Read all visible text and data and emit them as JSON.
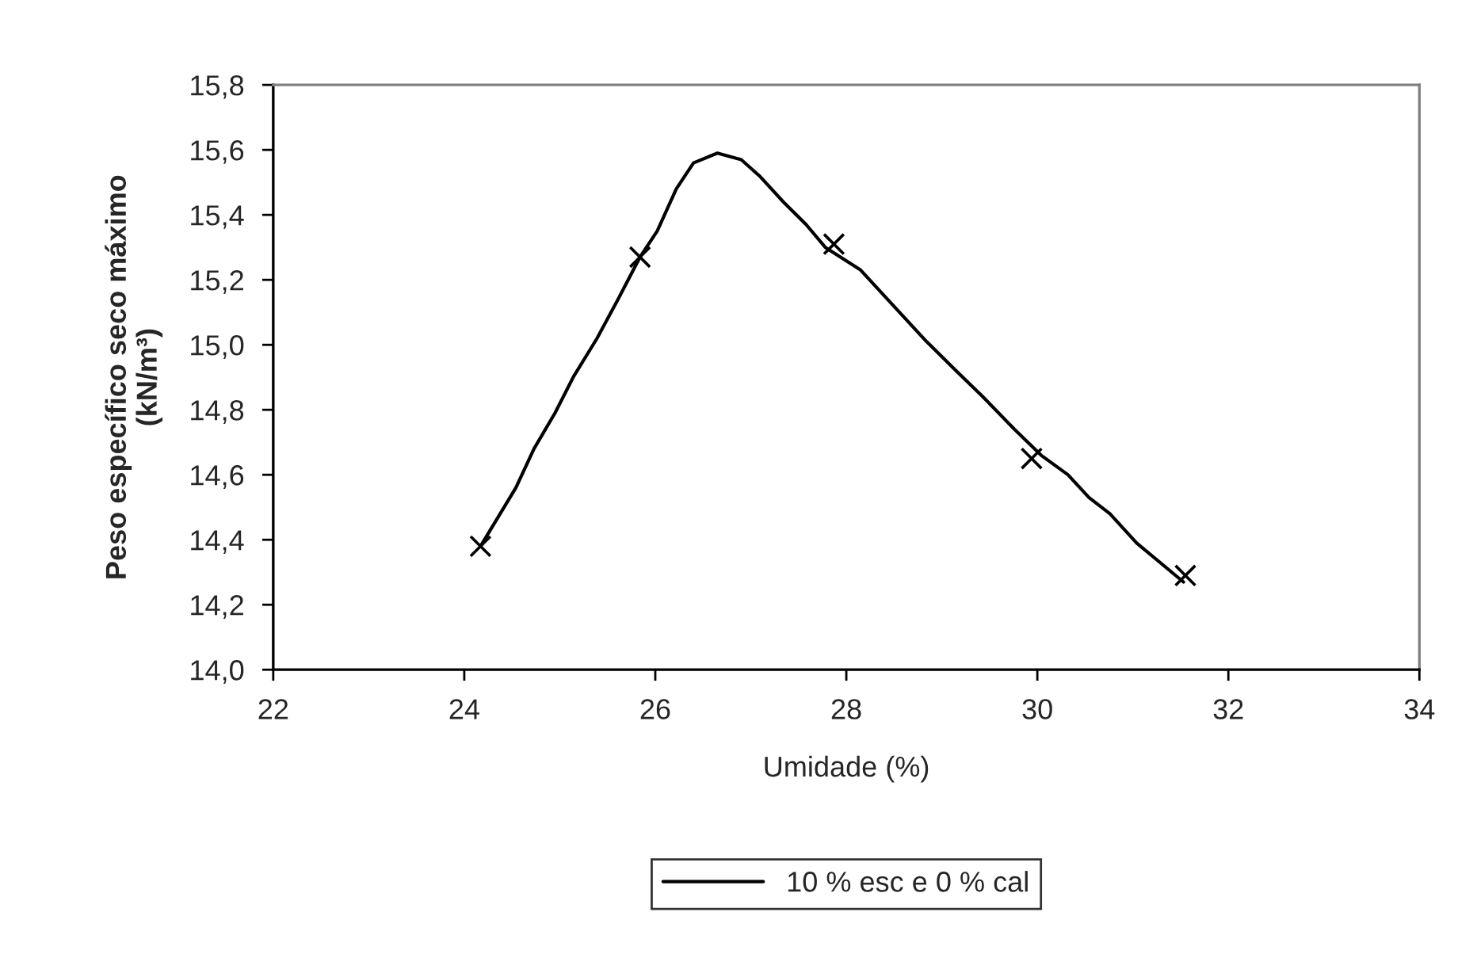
{
  "chart_data": {
    "type": "line",
    "xlabel": "Umidade (%)",
    "ylabel": "Peso específico seco máximo\n(kN/m³)",
    "xlim": [
      22,
      34
    ],
    "xticks": [
      22,
      24,
      26,
      28,
      30,
      32,
      34
    ],
    "ylim": [
      14.0,
      15.8
    ],
    "yticks": [
      {
        "value": 14.0,
        "label": "14,0"
      },
      {
        "value": 14.2,
        "label": "14,2"
      },
      {
        "value": 14.4,
        "label": "14,4"
      },
      {
        "value": 14.6,
        "label": "14,6"
      },
      {
        "value": 14.8,
        "label": "14,8"
      },
      {
        "value": 15.0,
        "label": "15,0"
      },
      {
        "value": 15.2,
        "label": "15,2"
      },
      {
        "value": 15.4,
        "label": "15,4"
      },
      {
        "value": 15.6,
        "label": "15,6"
      },
      {
        "value": 15.8,
        "label": "15,8"
      }
    ],
    "legend": "bottom",
    "grid": false,
    "series": [
      {
        "name": "10 % esc e 0 % cal",
        "color": "#000000",
        "marker": "none",
        "line_style": "solid",
        "x": [
          24.17,
          24.54,
          24.73,
          24.95,
          25.14,
          25.39,
          25.61,
          25.84,
          26.02,
          26.22,
          26.4,
          26.65,
          26.9,
          27.09,
          27.34,
          27.58,
          27.78,
          28.15,
          28.4,
          28.62,
          28.84,
          29.15,
          29.43,
          29.76,
          30.04,
          30.32,
          30.54,
          30.76,
          31.04,
          31.53
        ],
        "values": [
          14.38,
          14.56,
          14.68,
          14.79,
          14.9,
          15.02,
          15.14,
          15.27,
          15.35,
          15.48,
          15.56,
          15.59,
          15.57,
          15.52,
          15.44,
          15.37,
          15.3,
          15.23,
          15.15,
          15.08,
          15.01,
          14.92,
          14.84,
          14.74,
          14.66,
          14.6,
          14.53,
          14.48,
          14.39,
          14.27
        ]
      },
      {
        "type": "scatter",
        "color": "#000000",
        "marker": "cross",
        "x": [
          24.17,
          25.84,
          27.87,
          29.94,
          31.55
        ],
        "values": [
          14.38,
          15.27,
          15.31,
          14.65,
          14.29
        ]
      }
    ]
  }
}
